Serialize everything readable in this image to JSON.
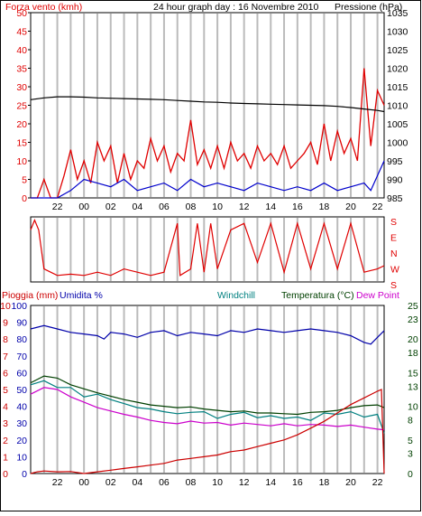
{
  "title": "24 hour graph day : 16 Novembre 2010",
  "colors": {
    "wind": "#e00000",
    "gust": "#e00000",
    "avg_wind": "#0000cc",
    "pressure": "#000000",
    "direction": "#e00000",
    "rain": "#cc0000",
    "humidity": "#0000aa",
    "windchill": "#008080",
    "temperature": "#004000",
    "dewpoint": "#cc00cc",
    "grid": "#bbbbbb",
    "frame": "#000000"
  },
  "chart_data": [
    {
      "id": "wind-pressure",
      "type": "line",
      "title": "24 hour graph day : 16 Novembre 2010",
      "ylabel": "Forza vento (kmh)",
      "y2label": "Pressione (hPa)",
      "x_ticks": [
        "22",
        "00",
        "02",
        "04",
        "06",
        "08",
        "10",
        "12",
        "14",
        "16",
        "18",
        "20",
        "22"
      ],
      "ylim": [
        0,
        50
      ],
      "yticks": [
        0,
        5,
        10,
        15,
        20,
        25,
        30,
        35,
        40,
        45,
        50
      ],
      "y2lim": [
        985,
        1035
      ],
      "y2ticks": [
        985,
        990,
        995,
        1000,
        1005,
        1010,
        1015,
        1020,
        1025,
        1030,
        1035
      ],
      "grid": true,
      "series": [
        {
          "name": "gust",
          "axis": "y",
          "x": [
            0,
            0.5,
            1,
            1.5,
            2,
            2.5,
            3,
            3.5,
            4,
            4.5,
            5,
            5.5,
            6,
            6.5,
            7,
            7.5,
            8,
            8.5,
            9,
            9.5,
            10,
            10.5,
            11,
            11.5,
            12,
            12.5,
            13,
            13.5,
            14,
            14.5,
            15,
            15.5,
            16,
            16.5,
            17,
            17.5,
            18,
            18.5,
            19,
            19.5,
            20,
            20.5,
            21,
            21.5,
            22,
            22.5,
            23,
            23.5,
            24,
            24.5,
            25,
            25.5,
            26,
            26.5
          ],
          "values": [
            0,
            0,
            5,
            0,
            0,
            6,
            13,
            5,
            10,
            4,
            15,
            10,
            14,
            4,
            12,
            5,
            10,
            8,
            16,
            10,
            14,
            7,
            12,
            10,
            21,
            9,
            13,
            8,
            14,
            8,
            15,
            10,
            12,
            8,
            14,
            10,
            12,
            9,
            14,
            8,
            10,
            12,
            15,
            9,
            20,
            10,
            18,
            12,
            16,
            10,
            35,
            14,
            29,
            25
          ]
        },
        {
          "name": "avg_wind",
          "axis": "y",
          "x": [
            0,
            1,
            2,
            3,
            4,
            5,
            6,
            7,
            8,
            9,
            10,
            11,
            12,
            13,
            14,
            15,
            16,
            17,
            18,
            19,
            20,
            21,
            22,
            23,
            24,
            25,
            25.5,
            26,
            26.5
          ],
          "values": [
            0,
            0,
            0,
            2,
            5,
            4,
            3,
            5,
            2,
            3,
            4,
            2,
            5,
            3,
            4,
            3,
            2,
            4,
            3,
            2,
            3,
            2,
            4,
            2,
            3,
            4,
            2,
            6,
            10
          ]
        },
        {
          "name": "pressure",
          "axis": "y2",
          "x": [
            0,
            1,
            2,
            3,
            4,
            5,
            6,
            7,
            8,
            9,
            10,
            11,
            12,
            13,
            14,
            15,
            16,
            17,
            18,
            19,
            20,
            21,
            22,
            23,
            24,
            25,
            26,
            26.5
          ],
          "values": [
            1011.5,
            1012,
            1012.3,
            1012.3,
            1012.2,
            1012.0,
            1011.9,
            1011.8,
            1011.7,
            1011.6,
            1011.5,
            1011.3,
            1011.1,
            1010.9,
            1010.8,
            1010.6,
            1010.5,
            1010.4,
            1010.3,
            1010.2,
            1010.1,
            1010.0,
            1009.9,
            1009.7,
            1009.4,
            1009.0,
            1008.6,
            1008.3
          ]
        }
      ]
    },
    {
      "id": "wind-direction",
      "type": "line",
      "ylabel": "",
      "y_tick_labels": [
        "S",
        "E",
        "N",
        "W",
        "S"
      ],
      "grid": true,
      "series": [
        {
          "name": "direction",
          "x": [
            0,
            0.3,
            0.6,
            1,
            1.5,
            2,
            3,
            4,
            5,
            6,
            7,
            8,
            9,
            10,
            11,
            11.2,
            12,
            12.5,
            13,
            13.5,
            14,
            15,
            16,
            17,
            18,
            19,
            20,
            21,
            22,
            23,
            24,
            25,
            26,
            26.5
          ],
          "values": [
            0.2,
            0.05,
            0.2,
            0.8,
            0.85,
            0.9,
            0.88,
            0.9,
            0.85,
            0.9,
            0.8,
            0.85,
            0.9,
            0.85,
            0.1,
            0.9,
            0.8,
            0.1,
            0.85,
            0.1,
            0.8,
            0.2,
            0.1,
            0.7,
            0.1,
            0.85,
            0.1,
            0.8,
            0.1,
            0.8,
            0.1,
            0.85,
            0.8,
            0.75
          ]
        }
      ]
    },
    {
      "id": "rain-humidity-temperature",
      "type": "line",
      "ylabel": "Pioggia (mm)",
      "ylabel2": "Umidita %",
      "legend": [
        "Windchill",
        "Temperatura (°C)",
        "Dew Point"
      ],
      "x_ticks": [
        "22",
        "00",
        "02",
        "04",
        "06",
        "08",
        "10",
        "12",
        "14",
        "16",
        "18",
        "20",
        "22"
      ],
      "rain_ticks": [
        0,
        1,
        2,
        3,
        4,
        5,
        6,
        7,
        8,
        9,
        10
      ],
      "humidity_ticks": [
        0,
        10,
        20,
        30,
        40,
        50,
        60,
        70,
        80,
        90,
        100
      ],
      "ylim": [
        0,
        100
      ],
      "temp_ticks": [
        0,
        3,
        5,
        8,
        10,
        13,
        15,
        18,
        20,
        23,
        25
      ],
      "temp_lim": [
        0,
        25
      ],
      "grid": true,
      "series": [
        {
          "name": "humidity",
          "x": [
            0,
            1,
            2,
            3,
            4,
            5,
            5.5,
            6,
            7,
            8,
            9,
            10,
            11,
            12,
            13,
            14,
            15,
            16,
            17,
            18,
            19,
            20,
            21,
            22,
            23,
            24,
            25,
            25.5,
            26,
            26.5
          ],
          "values": [
            86,
            88,
            86,
            84,
            83,
            82,
            80,
            84,
            83,
            81,
            84,
            85,
            82,
            84,
            83,
            82,
            85,
            84,
            86,
            85,
            84,
            85,
            86,
            85,
            84,
            82,
            78,
            77,
            81,
            85
          ]
        },
        {
          "name": "temperature",
          "x": [
            0,
            1,
            2,
            3,
            4,
            5,
            6,
            7,
            8,
            9,
            10,
            11,
            12,
            13,
            14,
            15,
            16,
            17,
            18,
            19,
            20,
            21,
            22,
            23,
            24,
            25,
            26,
            26.5
          ],
          "values": [
            13.5,
            14.5,
            14.2,
            13.2,
            12.6,
            12,
            11.5,
            11,
            10.6,
            10.2,
            10,
            9.8,
            9.9,
            9.6,
            9.4,
            9.2,
            9.3,
            9,
            9,
            8.9,
            8.8,
            9.1,
            9.2,
            9.4,
            9.8,
            10.1,
            10.2,
            9.8
          ]
        },
        {
          "name": "windchill",
          "x": [
            0,
            1,
            2,
            3,
            4,
            5,
            6,
            7,
            8,
            9,
            10,
            11,
            12,
            13,
            14,
            15,
            16,
            17,
            18,
            19,
            20,
            21,
            22,
            23,
            24,
            25,
            26,
            26.5
          ],
          "values": [
            13.2,
            13.8,
            12.8,
            12.8,
            11.4,
            11.8,
            11,
            10.4,
            9.8,
            9.6,
            9.2,
            8.9,
            9.1,
            9.2,
            8.2,
            8.8,
            9.1,
            8.3,
            8.6,
            8.2,
            8.4,
            7.9,
            9.0,
            8.8,
            9.2,
            8.4,
            8.8,
            6.0
          ]
        },
        {
          "name": "dewpoint",
          "x": [
            0,
            1,
            2,
            3,
            4,
            5,
            6,
            7,
            8,
            9,
            10,
            11,
            12,
            13,
            14,
            15,
            16,
            17,
            18,
            19,
            20,
            21,
            22,
            23,
            24,
            25,
            26,
            26.5
          ],
          "values": [
            11.8,
            12.8,
            12.5,
            11.4,
            10.6,
            9.8,
            9.3,
            8.8,
            8.4,
            7.9,
            7.6,
            7.4,
            7.8,
            7.5,
            7.6,
            7.2,
            7.5,
            7.3,
            7.1,
            7.4,
            7.1,
            7.3,
            7.2,
            7.0,
            7.2,
            6.9,
            6.6,
            6.5
          ]
        },
        {
          "name": "rain",
          "x": [
            0,
            0.5,
            1,
            2,
            3,
            4,
            5,
            6,
            7,
            8,
            9,
            10,
            11,
            12,
            13,
            14,
            15,
            16,
            17,
            18,
            19,
            20,
            21,
            22,
            23,
            24,
            25,
            26,
            26.3,
            26.5
          ],
          "values": [
            0,
            0.1,
            0.15,
            0.1,
            0.12,
            0.0,
            0.1,
            0.2,
            0.3,
            0.4,
            0.5,
            0.6,
            0.8,
            0.9,
            1.0,
            1.1,
            1.3,
            1.4,
            1.6,
            1.8,
            2.0,
            2.3,
            2.7,
            3.1,
            3.6,
            4.1,
            4.5,
            4.9,
            5.0,
            0.0
          ]
        }
      ]
    }
  ]
}
